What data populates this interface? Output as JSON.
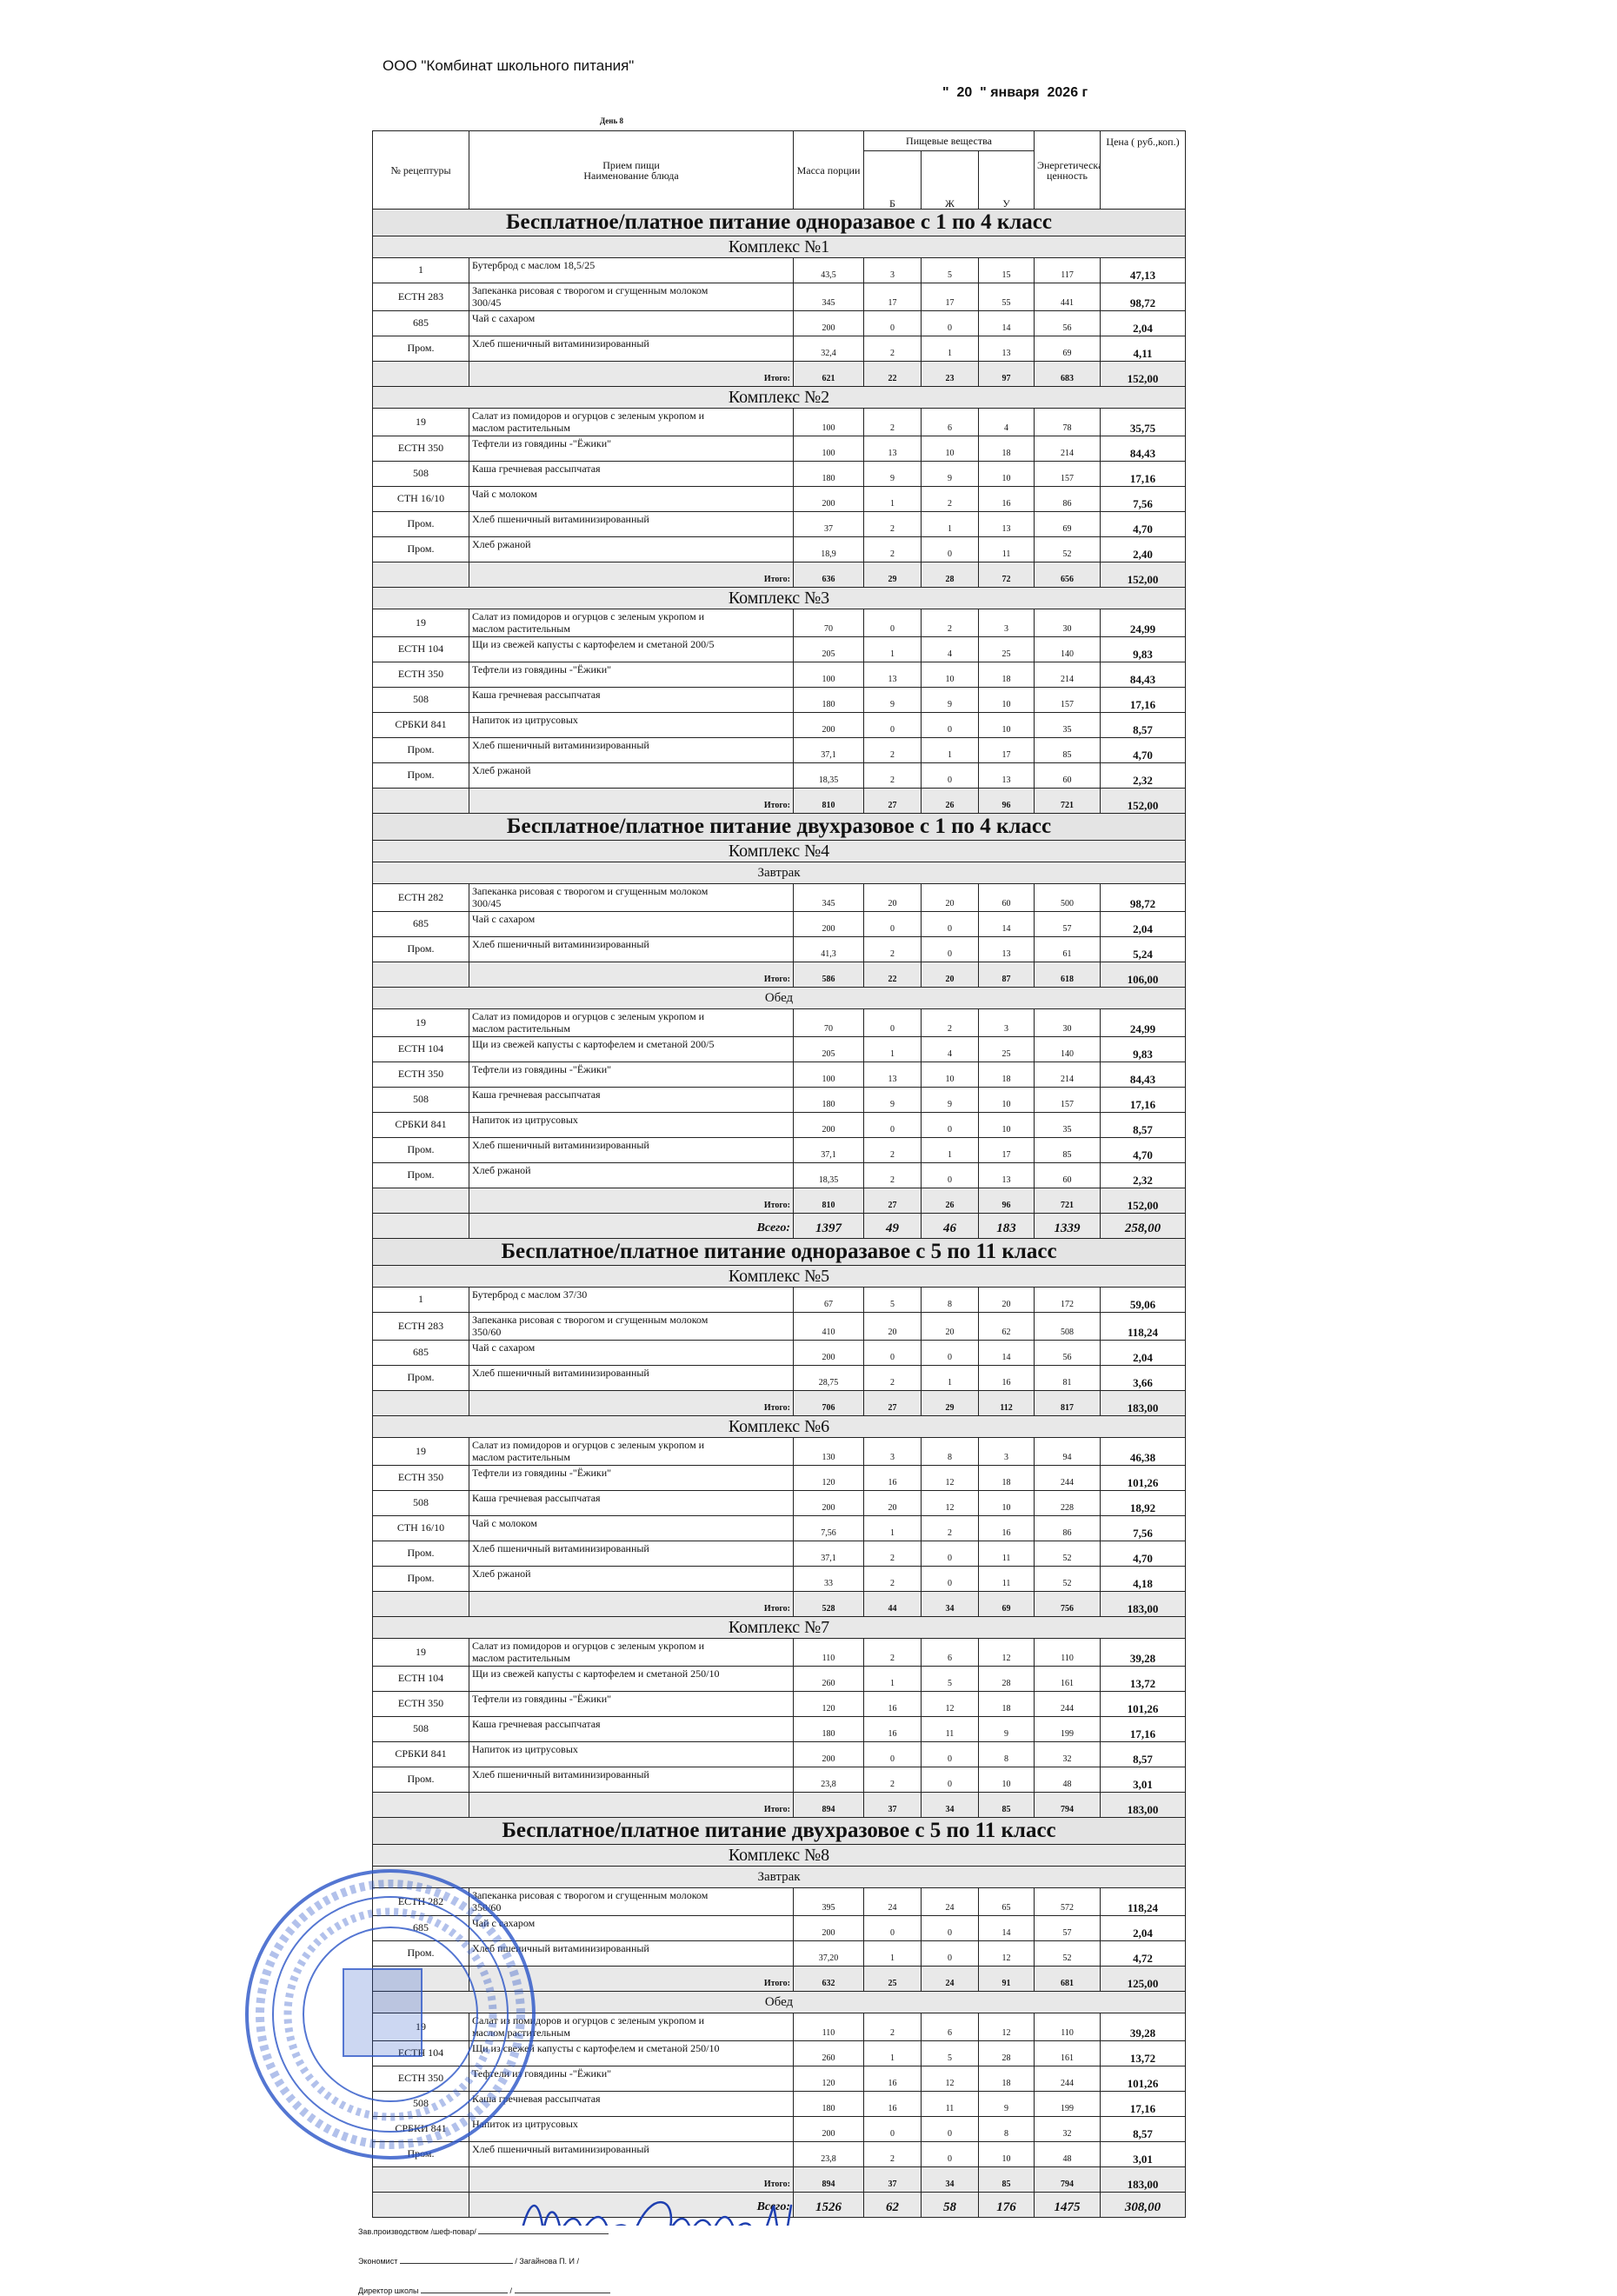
{
  "header": {
    "organization": "ООО \"Комбинат школьного питания\"",
    "date": "\"  20  \" января  2026 г",
    "day": "День 8"
  },
  "columns": {
    "recipe_no": "№ рецептуры",
    "meal_line1": "Прием пищи",
    "meal_line2": "Наименование блюда",
    "mass": "Масса порции",
    "nutrients": "Пищевые вещества",
    "b": "Б",
    "zh": "Ж",
    "u": "У",
    "energy": "Энергетическая ценность",
    "price": "Цена ( руб.,коп.)"
  },
  "rows": [
    {
      "t": "section",
      "text": "Бесплатное/платное питание одноразавое  с 1 по 4 класс"
    },
    {
      "t": "complex",
      "text": "Комплекс №1"
    },
    {
      "t": "item",
      "v": [
        "1",
        "Бутерброд с маслом 18,5/25",
        "43,5",
        "3",
        "5",
        "15",
        "117",
        "47,13"
      ]
    },
    {
      "t": "item",
      "v": [
        "ЕСТН 283",
        "Запеканка рисовая с творогом и сгущенным молоком 300/45",
        "345",
        "17",
        "17",
        "55",
        "441",
        "98,72"
      ]
    },
    {
      "t": "item",
      "v": [
        "685",
        "Чай с сахаром",
        "200",
        "0",
        "0",
        "14",
        "56",
        "2,04"
      ]
    },
    {
      "t": "item",
      "v": [
        "Пром.",
        "Хлеб пшеничный витаминизированный",
        "32,4",
        "2",
        "1",
        "13",
        "69",
        "4,11"
      ]
    },
    {
      "t": "total",
      "label": "Итого:",
      "v": [
        "621",
        "22",
        "23",
        "97",
        "683",
        "152,00"
      ]
    },
    {
      "t": "complex",
      "text": "Комплекс №2"
    },
    {
      "t": "item",
      "v": [
        "19",
        "Салат из помидоров и огурцов с зеленым укропом и маслом растительным",
        "100",
        "2",
        "6",
        "4",
        "78",
        "35,75"
      ]
    },
    {
      "t": "item",
      "v": [
        "ЕСТН 350",
        "Тефтели из говядины -\"Ёжики\"",
        "100",
        "13",
        "10",
        "18",
        "214",
        "84,43"
      ]
    },
    {
      "t": "item",
      "v": [
        "508",
        "Каша гречневая рассыпчатая",
        "180",
        "9",
        "9",
        "10",
        "157",
        "17,16"
      ]
    },
    {
      "t": "item",
      "v": [
        "СТН 16/10",
        "Чай с молоком",
        "200",
        "1",
        "2",
        "16",
        "86",
        "7,56"
      ]
    },
    {
      "t": "item",
      "v": [
        "Пром.",
        "Хлеб пшеничный витаминизированный",
        "37",
        "2",
        "1",
        "13",
        "69",
        "4,70"
      ]
    },
    {
      "t": "item",
      "v": [
        "Пром.",
        "Хлеб ржаной",
        "18,9",
        "2",
        "0",
        "11",
        "52",
        "2,40"
      ]
    },
    {
      "t": "total",
      "label": "Итого:",
      "v": [
        "636",
        "29",
        "28",
        "72",
        "656",
        "152,00"
      ]
    },
    {
      "t": "complex",
      "text": "Комплекс №3"
    },
    {
      "t": "item",
      "v": [
        "19",
        "Салат из помидоров и огурцов с зеленым укропом и маслом растительным",
        "70",
        "0",
        "2",
        "3",
        "30",
        "24,99"
      ]
    },
    {
      "t": "item",
      "v": [
        "ЕСТН 104",
        "Щи из свежей капусты с картофелем и сметаной 200/5",
        "205",
        "1",
        "4",
        "25",
        "140",
        "9,83"
      ]
    },
    {
      "t": "item",
      "v": [
        "ЕСТН 350",
        "Тефтели из говядины -\"Ёжики\"",
        "100",
        "13",
        "10",
        "18",
        "214",
        "84,43"
      ]
    },
    {
      "t": "item",
      "v": [
        "508",
        "Каша гречневая рассыпчатая",
        "180",
        "9",
        "9",
        "10",
        "157",
        "17,16"
      ]
    },
    {
      "t": "item",
      "v": [
        "СРБКИ 841",
        "Напиток из цитрусовых",
        "200",
        "0",
        "0",
        "10",
        "35",
        "8,57"
      ]
    },
    {
      "t": "item",
      "v": [
        "Пром.",
        "Хлеб пшеничный витаминизированный",
        "37,1",
        "2",
        "1",
        "17",
        "85",
        "4,70"
      ]
    },
    {
      "t": "item",
      "v": [
        "Пром.",
        "Хлеб ржаной",
        "18,35",
        "2",
        "0",
        "13",
        "60",
        "2,32"
      ]
    },
    {
      "t": "total",
      "label": "Итого:",
      "v": [
        "810",
        "27",
        "26",
        "96",
        "721",
        "152,00"
      ]
    },
    {
      "t": "section",
      "text": "Бесплатное/платное питание двухразовое с 1 по 4 класс"
    },
    {
      "t": "complex",
      "text": "Комплекс №4"
    },
    {
      "t": "meal",
      "text": "Завтрак"
    },
    {
      "t": "item",
      "v": [
        "ЕСТН 282",
        "Запеканка рисовая с творогом и сгущенным молоком 300/45",
        "345",
        "20",
        "20",
        "60",
        "500",
        "98,72"
      ]
    },
    {
      "t": "item",
      "v": [
        "685",
        "Чай с сахаром",
        "200",
        "0",
        "0",
        "14",
        "57",
        "2,04"
      ]
    },
    {
      "t": "item",
      "v": [
        "Пром.",
        "Хлеб пшеничный витаминизированный",
        "41,3",
        "2",
        "0",
        "13",
        "61",
        "5,24"
      ]
    },
    {
      "t": "total",
      "label": "Итого:",
      "v": [
        "586",
        "22",
        "20",
        "87",
        "618",
        "106,00"
      ]
    },
    {
      "t": "meal",
      "text": "Обед"
    },
    {
      "t": "item",
      "v": [
        "19",
        "Салат из помидоров и огурцов с зеленым укропом и маслом растительным",
        "70",
        "0",
        "2",
        "3",
        "30",
        "24,99"
      ]
    },
    {
      "t": "item",
      "v": [
        "ЕСТН 104",
        "Щи из свежей капусты с картофелем и сметаной 200/5",
        "205",
        "1",
        "4",
        "25",
        "140",
        "9,83"
      ]
    },
    {
      "t": "item",
      "v": [
        "ЕСТН 350",
        "Тефтели из говядины -\"Ёжики\"",
        "100",
        "13",
        "10",
        "18",
        "214",
        "84,43"
      ]
    },
    {
      "t": "item",
      "v": [
        "508",
        "Каша гречневая рассыпчатая",
        "180",
        "9",
        "9",
        "10",
        "157",
        "17,16"
      ]
    },
    {
      "t": "item",
      "v": [
        "СРБКИ 841",
        "Напиток из цитрусовых",
        "200",
        "0",
        "0",
        "10",
        "35",
        "8,57"
      ]
    },
    {
      "t": "item",
      "v": [
        "Пром.",
        "Хлеб пшеничный витаминизированный",
        "37,1",
        "2",
        "1",
        "17",
        "85",
        "4,70"
      ]
    },
    {
      "t": "item",
      "v": [
        "Пром.",
        "Хлеб ржаной",
        "18,35",
        "2",
        "0",
        "13",
        "60",
        "2,32"
      ]
    },
    {
      "t": "total",
      "label": "Итого:",
      "v": [
        "810",
        "27",
        "26",
        "96",
        "721",
        "152,00"
      ]
    },
    {
      "t": "grand",
      "label": "Всего:",
      "v": [
        "1397",
        "49",
        "46",
        "183",
        "1339",
        "258,00"
      ]
    },
    {
      "t": "section",
      "text": "Бесплатное/платное питание одноразавое  с 5 по 11 класс"
    },
    {
      "t": "complex",
      "text": "Комплекс №5"
    },
    {
      "t": "item",
      "v": [
        "1",
        "Бутерброд с маслом 37/30",
        "67",
        "5",
        "8",
        "20",
        "172",
        "59,06"
      ]
    },
    {
      "t": "item",
      "v": [
        "ЕСТН 283",
        "Запеканка рисовая с творогом и сгущенным молоком 350/60",
        "410",
        "20",
        "20",
        "62",
        "508",
        "118,24"
      ]
    },
    {
      "t": "item",
      "v": [
        "685",
        "Чай с сахаром",
        "200",
        "0",
        "0",
        "14",
        "56",
        "2,04"
      ]
    },
    {
      "t": "item",
      "v": [
        "Пром.",
        "Хлеб пшеничный витаминизированный",
        "28,75",
        "2",
        "1",
        "16",
        "81",
        "3,66"
      ]
    },
    {
      "t": "total",
      "label": "Итого:",
      "v": [
        "706",
        "27",
        "29",
        "112",
        "817",
        "183,00"
      ]
    },
    {
      "t": "complex",
      "text": "Комплекс №6"
    },
    {
      "t": "item",
      "v": [
        "19",
        "Салат из помидоров и огурцов с зеленым укропом и маслом растительным",
        "130",
        "3",
        "8",
        "3",
        "94",
        "46,38"
      ]
    },
    {
      "t": "item",
      "v": [
        "ЕСТН 350",
        "Тефтели из говядины -\"Ёжики\"",
        "120",
        "16",
        "12",
        "18",
        "244",
        "101,26"
      ]
    },
    {
      "t": "item",
      "v": [
        "508",
        "Каша гречневая рассыпчатая",
        "200",
        "20",
        "12",
        "10",
        "228",
        "18,92"
      ]
    },
    {
      "t": "item",
      "v": [
        "СТН 16/10",
        "Чай с молоком",
        "7,56",
        "1",
        "2",
        "16",
        "86",
        "7,56"
      ]
    },
    {
      "t": "item",
      "v": [
        "Пром.",
        "Хлеб пшеничный витаминизированный",
        "37,1",
        "2",
        "0",
        "11",
        "52",
        "4,70"
      ]
    },
    {
      "t": "item",
      "v": [
        "Пром.",
        "Хлеб ржаной",
        "33",
        "2",
        "0",
        "11",
        "52",
        "4,18"
      ]
    },
    {
      "t": "total",
      "label": "Итого:",
      "v": [
        "528",
        "44",
        "34",
        "69",
        "756",
        "183,00"
      ]
    },
    {
      "t": "complex",
      "text": "Комплекс №7"
    },
    {
      "t": "item",
      "v": [
        "19",
        "Салат из помидоров и огурцов с зеленым укропом и маслом растительным",
        "110",
        "2",
        "6",
        "12",
        "110",
        "39,28"
      ]
    },
    {
      "t": "item",
      "v": [
        "ЕСТН 104",
        "Щи из свежей капусты с картофелем и сметаной 250/10",
        "260",
        "1",
        "5",
        "28",
        "161",
        "13,72"
      ]
    },
    {
      "t": "item",
      "v": [
        "ЕСТН 350",
        "Тефтели из говядины -\"Ёжики\"",
        "120",
        "16",
        "12",
        "18",
        "244",
        "101,26"
      ]
    },
    {
      "t": "item",
      "v": [
        "508",
        "Каша гречневая рассыпчатая",
        "180",
        "16",
        "11",
        "9",
        "199",
        "17,16"
      ]
    },
    {
      "t": "item",
      "v": [
        "СРБКИ 841",
        "Напиток из цитрусовых",
        "200",
        "0",
        "0",
        "8",
        "32",
        "8,57"
      ]
    },
    {
      "t": "item",
      "v": [
        "Пром.",
        "Хлеб пшеничный витаминизированный",
        "23,8",
        "2",
        "0",
        "10",
        "48",
        "3,01"
      ]
    },
    {
      "t": "total",
      "label": "Итого:",
      "v": [
        "894",
        "37",
        "34",
        "85",
        "794",
        "183,00"
      ]
    },
    {
      "t": "section",
      "text": "Бесплатное/платное питание двухразовое с 5 по 11 класс"
    },
    {
      "t": "complex",
      "text": "Комплекс №8"
    },
    {
      "t": "meal",
      "text": "Завтрак"
    },
    {
      "t": "item",
      "v": [
        "ЕСТН 282",
        "Запеканка рисовая с творогом и сгущенным молоком 350/60",
        "395",
        "24",
        "24",
        "65",
        "572",
        "118,24"
      ]
    },
    {
      "t": "item",
      "v": [
        "685",
        "Чай с сахаром",
        "200",
        "0",
        "0",
        "14",
        "57",
        "2,04"
      ]
    },
    {
      "t": "item",
      "v": [
        "Пром.",
        "Хлеб пшеничный витаминизированный",
        "37,20",
        "1",
        "0",
        "12",
        "52",
        "4,72"
      ]
    },
    {
      "t": "total",
      "label": "Итого:",
      "v": [
        "632",
        "25",
        "24",
        "91",
        "681",
        "125,00"
      ]
    },
    {
      "t": "meal",
      "text": "Обед"
    },
    {
      "t": "item",
      "v": [
        "19",
        "Салат из помидоров и огурцов с зеленым укропом и маслом растительным",
        "110",
        "2",
        "6",
        "12",
        "110",
        "39,28"
      ]
    },
    {
      "t": "item",
      "v": [
        "ЕСТН 104",
        "Щи из свежей капусты с картофелем и сметаной 250/10",
        "260",
        "1",
        "5",
        "28",
        "161",
        "13,72"
      ]
    },
    {
      "t": "item",
      "v": [
        "ЕСТН 350",
        "Тефтели из говядины -\"Ёжики\"",
        "120",
        "16",
        "12",
        "18",
        "244",
        "101,26"
      ]
    },
    {
      "t": "item",
      "v": [
        "508",
        "Каша гречневая рассыпчатая",
        "180",
        "16",
        "11",
        "9",
        "199",
        "17,16"
      ]
    },
    {
      "t": "item",
      "v": [
        "СРБКИ 841",
        "Напиток из цитрусовых",
        "200",
        "0",
        "0",
        "8",
        "32",
        "8,57"
      ]
    },
    {
      "t": "item",
      "v": [
        "Пром.",
        "Хлеб пшеничный витаминизированный",
        "23,8",
        "2",
        "0",
        "10",
        "48",
        "3,01"
      ]
    },
    {
      "t": "total",
      "label": "Итого:",
      "v": [
        "894",
        "37",
        "34",
        "85",
        "794",
        "183,00"
      ]
    },
    {
      "t": "grand",
      "label": "Всего:",
      "v": [
        "1526",
        "62",
        "58",
        "176",
        "1475",
        "308,00"
      ]
    }
  ],
  "footer": {
    "chef_label": "Зав.производством /шеф-повар/",
    "economist_label": "Экономист",
    "economist_name": "/ Загайнова П. И /",
    "director_label": "Директор школы"
  },
  "stamp": {
    "outer_text": "Российская Федерация, Свердловская обл. Туринский ГО",
    "inner_text": "Муниципальное автономное общеобразовательное учреждение Благовещенская средняя общеобразовательная школа",
    "ids": "ИНН 6656003... * ОГРН 10266022...",
    "color": "#2a55c8"
  },
  "colors": {
    "shade": "#e4e4e4",
    "ink": "#1e3fb0"
  }
}
